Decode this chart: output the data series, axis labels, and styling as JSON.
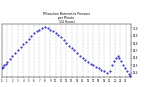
{
  "title": "Milwaukee Barometric Pressure\nper Minute\n(24 Hours)",
  "background_color": "#ffffff",
  "line_color": "#0000cc",
  "grid_color": "#888888",
  "ylim": [
    29.35,
    30.05
  ],
  "xlim": [
    0,
    1440
  ],
  "yticks": [
    29.4,
    29.5,
    29.6,
    29.7,
    29.8,
    29.9,
    30.0
  ],
  "ytick_labels": [
    "29.4",
    "29.5",
    "29.6",
    "29.7",
    "29.8",
    "29.9",
    "30.0"
  ],
  "xticks": [
    0,
    60,
    120,
    180,
    240,
    300,
    360,
    420,
    480,
    540,
    600,
    660,
    720,
    780,
    840,
    900,
    960,
    1020,
    1080,
    1140,
    1200,
    1260,
    1320,
    1380
  ],
  "xtick_labels": [
    "0",
    "1",
    "2",
    "3",
    "4",
    "5",
    "6",
    "7",
    "8",
    "9",
    "10",
    "11",
    "12",
    "13",
    "14",
    "15",
    "16",
    "17",
    "18",
    "19",
    "20",
    "21",
    "22",
    "23"
  ],
  "vgrid_positions": [
    60,
    120,
    180,
    240,
    300,
    360,
    420,
    480,
    540,
    600,
    660,
    720,
    780,
    840,
    900,
    960,
    1020,
    1080,
    1140,
    1200,
    1260,
    1320,
    1380
  ],
  "x": [
    0,
    15,
    30,
    45,
    60,
    90,
    120,
    150,
    180,
    210,
    240,
    270,
    300,
    330,
    360,
    390,
    420,
    450,
    480,
    510,
    540,
    570,
    600,
    630,
    660,
    690,
    720,
    750,
    780,
    810,
    840,
    870,
    900,
    930,
    960,
    990,
    1020,
    1050,
    1080,
    1110,
    1140,
    1170,
    1200,
    1230,
    1250,
    1270,
    1290,
    1310,
    1330,
    1350,
    1370,
    1390,
    1410,
    1430
  ],
  "y": [
    29.46,
    29.48,
    29.5,
    29.52,
    29.54,
    29.58,
    29.62,
    29.66,
    29.7,
    29.74,
    29.78,
    29.82,
    29.86,
    29.89,
    29.93,
    29.96,
    29.98,
    30.0,
    30.01,
    30.0,
    29.98,
    29.96,
    29.93,
    29.91,
    29.88,
    29.84,
    29.8,
    29.76,
    29.73,
    29.7,
    29.66,
    29.62,
    29.6,
    29.57,
    29.54,
    29.52,
    29.5,
    29.48,
    29.46,
    29.44,
    29.42,
    29.4,
    29.42,
    29.5,
    29.56,
    29.6,
    29.62,
    29.6,
    29.56,
    29.5,
    29.46,
    29.42,
    29.38,
    29.36
  ]
}
